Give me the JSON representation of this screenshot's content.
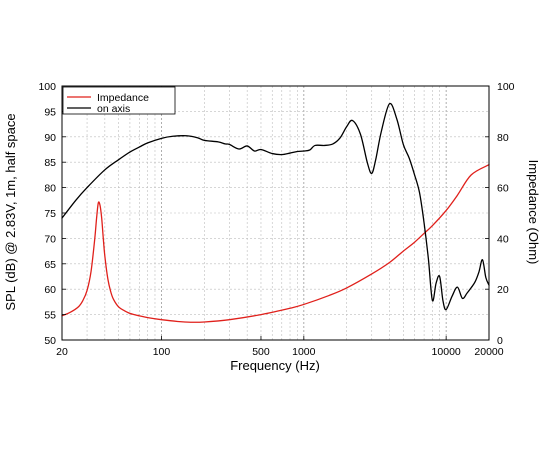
{
  "chart_data": {
    "type": "line",
    "xlabel": "Frequency (Hz)",
    "ylabel_left": "SPL (dB) @ 2.83V, 1m, half space",
    "ylabel_right": "Impedance (Ohm)",
    "x_scale": "log",
    "xlim": [
      20,
      20000
    ],
    "ylim_left": [
      50,
      100
    ],
    "ylim_right": [
      0,
      100
    ],
    "x_ticks": [
      20,
      100,
      500,
      1000,
      10000,
      20000
    ],
    "y_ticks_left": [
      50,
      55,
      60,
      65,
      70,
      75,
      80,
      85,
      90,
      95,
      100
    ],
    "y_ticks_right": [
      0,
      20,
      40,
      60,
      80,
      100
    ],
    "grid": true,
    "legend_position": "top-left",
    "series": [
      {
        "name": "Impedance",
        "axis": "right",
        "color": "#e0201b",
        "x": [
          20,
          23,
          26,
          28,
          30,
          32,
          34,
          35,
          36,
          37,
          38,
          39,
          40,
          42,
          44,
          46,
          50,
          55,
          60,
          70,
          80,
          100,
          130,
          160,
          200,
          300,
          500,
          800,
          1000,
          1500,
          2000,
          3000,
          4000,
          5000,
          6000,
          7000,
          8000,
          10000,
          12000,
          15000,
          20000
        ],
        "y": [
          9.5,
          11,
          13,
          15.5,
          19.5,
          27,
          40,
          48,
          54,
          53,
          48,
          40,
          33,
          24,
          19,
          16,
          13,
          11.5,
          10.5,
          9.5,
          8.8,
          8,
          7.3,
          7,
          7.1,
          8,
          10,
          12.5,
          14,
          17.5,
          20.5,
          26,
          30.5,
          35,
          38.5,
          42,
          45,
          51,
          57,
          65,
          69
        ]
      },
      {
        "name": "on axis",
        "axis": "left",
        "color": "#000000",
        "x": [
          20,
          25,
          30,
          40,
          50,
          60,
          70,
          80,
          100,
          120,
          150,
          180,
          200,
          250,
          280,
          300,
          350,
          400,
          450,
          500,
          600,
          700,
          800,
          900,
          1000,
          1100,
          1200,
          1400,
          1600,
          1800,
          2000,
          2200,
          2500,
          2800,
          3000,
          3200,
          3500,
          4000,
          4500,
          5000,
          5500,
          6000,
          6500,
          7000,
          7500,
          8000,
          8500,
          9000,
          9500,
          10000,
          11000,
          12000,
          13000,
          14000,
          15000,
          16000,
          17000,
          18000,
          19000,
          20000
        ],
        "y": [
          74,
          77.5,
          80,
          83.5,
          85.5,
          87,
          88,
          88.8,
          89.7,
          90.1,
          90.2,
          89.8,
          89.3,
          89,
          88.6,
          88.5,
          87.6,
          88.2,
          87.2,
          87.5,
          86.7,
          86.5,
          86.8,
          87.1,
          87.2,
          87.4,
          88.3,
          88.3,
          88.6,
          89.8,
          92,
          93.2,
          90.5,
          84.8,
          82.8,
          85.5,
          91,
          96.5,
          93.5,
          88.5,
          85.8,
          82.5,
          79,
          73,
          66,
          57.8,
          61.2,
          62.5,
          57.7,
          56,
          58.6,
          60.4,
          58.2,
          59.2,
          60.3,
          61.5,
          63.4,
          65.8,
          62.3,
          60.8
        ]
      }
    ]
  }
}
